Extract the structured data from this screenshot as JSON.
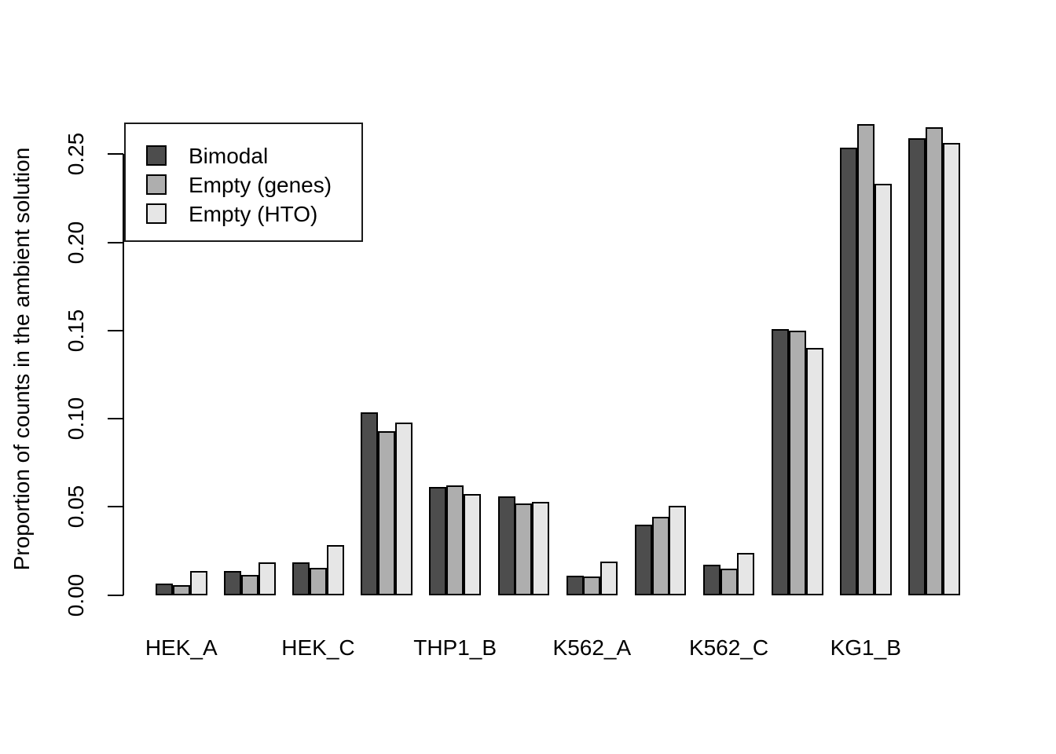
{
  "figure": {
    "background": "#ffffff",
    "ylabel": "Proportion of counts in the ambient solution",
    "xlabel": "",
    "title": ""
  },
  "chart_data": {
    "type": "bar",
    "title": "",
    "xlabel": "",
    "ylabel": "Proportion of counts in the ambient solution",
    "ylim": [
      0,
      0.27
    ],
    "yticks": [
      0.0,
      0.05,
      0.1,
      0.15,
      0.2,
      0.25
    ],
    "ytick_labels": [
      "0.00",
      "0.05",
      "0.10",
      "0.15",
      "0.20",
      "0.25"
    ],
    "grid": false,
    "legend_position": "top-left-inside",
    "bar_outline_color": "#000000",
    "axis_color": "#000000",
    "categories": [
      "HEK_A",
      "",
      "HEK_C",
      "",
      "THP1_B",
      "",
      "K562_A",
      "",
      "K562_C",
      "",
      "KG1_B",
      ""
    ],
    "visible_x_labels": [
      "HEK_A",
      "HEK_C",
      "THP1_B",
      "K562_A",
      "K562_C",
      "KG1_B"
    ],
    "series": [
      {
        "name": "Bimodal",
        "color": "#4D4D4D",
        "values": [
          0.0069,
          0.0136,
          0.0185,
          0.1036,
          0.0615,
          0.0561,
          0.0111,
          0.0401,
          0.0174,
          0.1511,
          0.254,
          0.2594
        ]
      },
      {
        "name": "Empty (genes)",
        "color": "#AEAEAE",
        "values": [
          0.0056,
          0.0114,
          0.0154,
          0.0933,
          0.0624,
          0.0521,
          0.0107,
          0.0446,
          0.0152,
          0.1502,
          0.2674,
          0.2656
        ]
      },
      {
        "name": "Empty (HTO)",
        "color": "#E6E6E6",
        "values": [
          0.0136,
          0.0189,
          0.0283,
          0.0982,
          0.0575,
          0.053,
          0.0192,
          0.0508,
          0.0241,
          0.1404,
          0.2335,
          0.2567
        ]
      }
    ]
  }
}
